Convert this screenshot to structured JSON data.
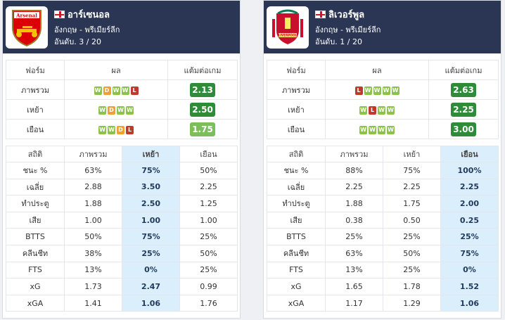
{
  "colors": {
    "header": "#2a3654",
    "win": "#8bc34a",
    "draw": "#f0a030",
    "loss": "#c0392b",
    "ppg_high": "#2e8b3a",
    "ppg_mid": "#7cbf5a",
    "highlight": "#dbeefb"
  },
  "teams": [
    {
      "name": "อาร์เซนอล",
      "league": "อังกฤษ - พรีเมียร์ลีก",
      "rank": "อันดับ. 3 / 20",
      "form_headers": [
        "ฟอร์ม",
        "ผล",
        "แต้มต่อเกม"
      ],
      "form_rows": [
        {
          "label": "ภาพรวม",
          "results": [
            "W",
            "D",
            "W",
            "W",
            "L"
          ],
          "ppg": "2.13"
        },
        {
          "label": "เหย้า",
          "results": [
            "W",
            "D",
            "W",
            "W"
          ],
          "ppg": "2.50"
        },
        {
          "label": "เยือน",
          "results": [
            "W",
            "W",
            "D",
            "L"
          ],
          "ppg": "1.75"
        }
      ],
      "stat_headers": [
        "สถิติ",
        "ภาพรวม",
        "เหย้า",
        "เยือน"
      ],
      "highlight_column": "home",
      "stat_rows": [
        {
          "label": "ชนะ %",
          "overall": "63%",
          "home": "75%",
          "away": "50%"
        },
        {
          "label": "เฉลี่ย",
          "overall": "2.88",
          "home": "3.50",
          "away": "2.25"
        },
        {
          "label": "ทำประตู",
          "overall": "1.88",
          "home": "2.50",
          "away": "1.25"
        },
        {
          "label": "เสีย",
          "overall": "1.00",
          "home": "1.00",
          "away": "1.00"
        },
        {
          "label": "BTTS",
          "overall": "50%",
          "home": "75%",
          "away": "25%"
        },
        {
          "label": "คลีนชีท",
          "overall": "38%",
          "home": "25%",
          "away": "50%"
        },
        {
          "label": "FTS",
          "overall": "13%",
          "home": "0%",
          "away": "25%"
        },
        {
          "label": "xG",
          "overall": "1.73",
          "home": "2.47",
          "away": "0.99"
        },
        {
          "label": "xGA",
          "overall": "1.41",
          "home": "1.06",
          "away": "1.76"
        }
      ]
    },
    {
      "name": "ลิเวอร์พูล",
      "league": "อังกฤษ - พรีเมียร์ลีก",
      "rank": "อันดับ. 1 / 20",
      "form_headers": [
        "ฟอร์ม",
        "ผล",
        "แต้มต่อเกม"
      ],
      "form_rows": [
        {
          "label": "ภาพรวม",
          "results": [
            "L",
            "W",
            "W",
            "W",
            "W"
          ],
          "ppg": "2.63"
        },
        {
          "label": "เหย้า",
          "results": [
            "W",
            "L",
            "W",
            "W"
          ],
          "ppg": "2.25"
        },
        {
          "label": "เยือน",
          "results": [
            "W",
            "W",
            "W",
            "W"
          ],
          "ppg": "3.00"
        }
      ],
      "stat_headers": [
        "สถิติ",
        "ภาพรวม",
        "เหย้า",
        "เยือน"
      ],
      "highlight_column": "away",
      "stat_rows": [
        {
          "label": "ชนะ %",
          "overall": "88%",
          "home": "75%",
          "away": "100%"
        },
        {
          "label": "เฉลี่ย",
          "overall": "2.25",
          "home": "2.25",
          "away": "2.25"
        },
        {
          "label": "ทำประตู",
          "overall": "1.88",
          "home": "1.75",
          "away": "2.00"
        },
        {
          "label": "เสีย",
          "overall": "0.38",
          "home": "0.50",
          "away": "0.25"
        },
        {
          "label": "BTTS",
          "overall": "25%",
          "home": "25%",
          "away": "25%"
        },
        {
          "label": "คลีนชีท",
          "overall": "63%",
          "home": "50%",
          "away": "75%"
        },
        {
          "label": "FTS",
          "overall": "13%",
          "home": "25%",
          "away": "0%"
        },
        {
          "label": "xG",
          "overall": "1.65",
          "home": "1.78",
          "away": "1.52"
        },
        {
          "label": "xGA",
          "overall": "1.17",
          "home": "1.29",
          "away": "1.06"
        }
      ]
    }
  ],
  "logos": [
    {
      "text": "Arsenal"
    },
    {
      "text": "LIVERPOOL"
    }
  ]
}
